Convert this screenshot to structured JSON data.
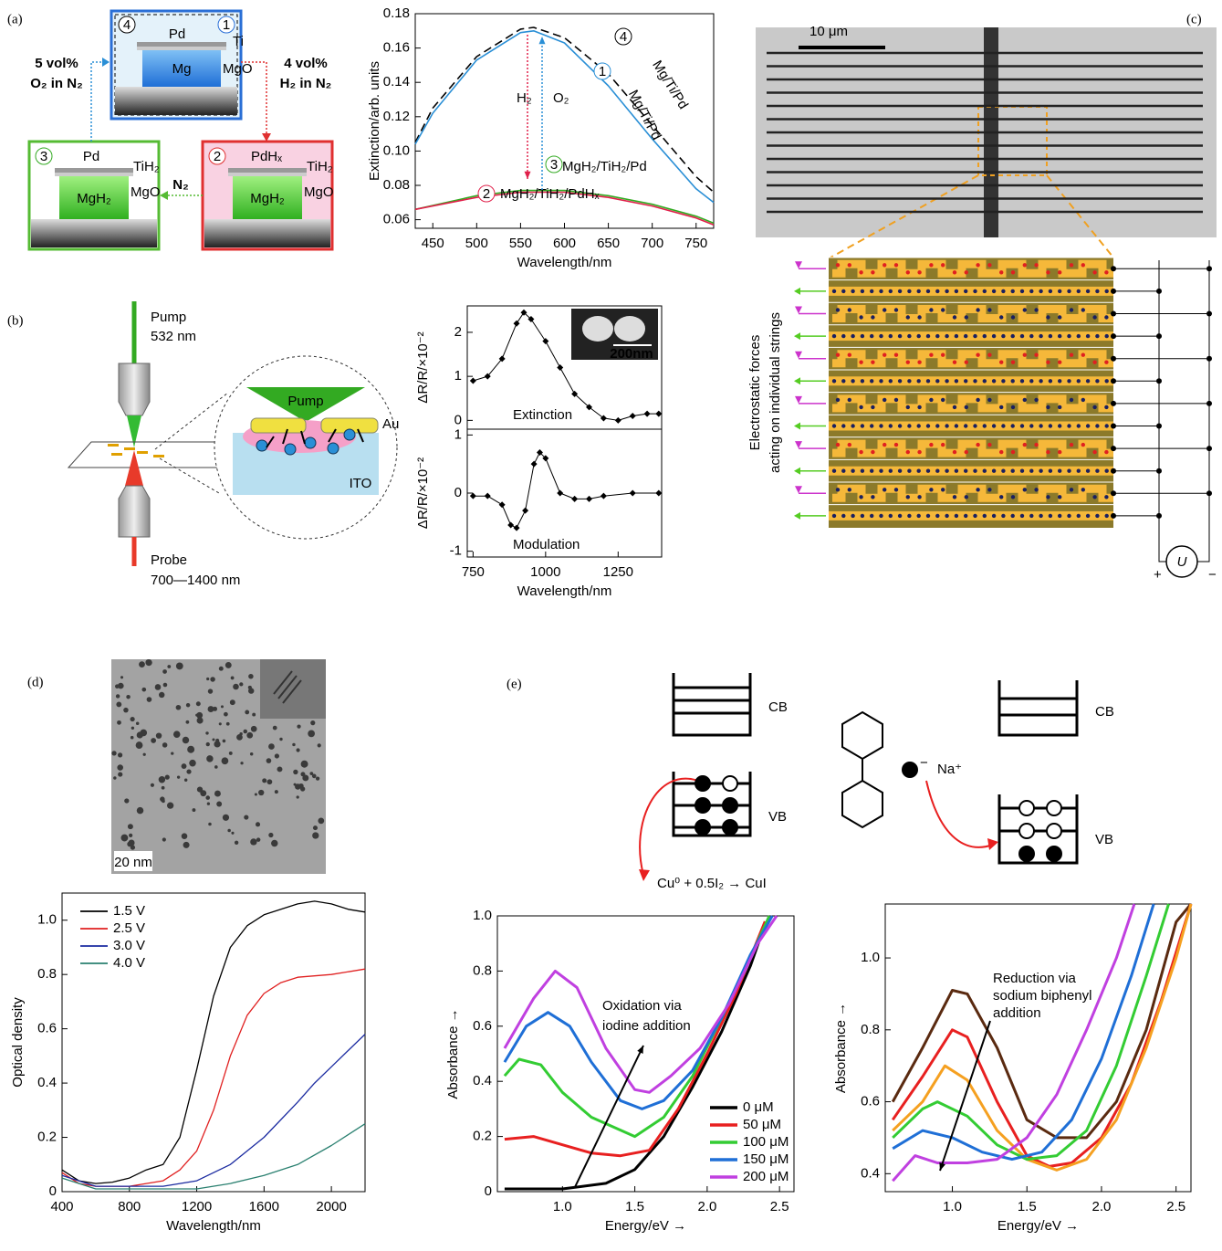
{
  "figure": {
    "a": [
      "(a)",
      "4",
      "1",
      "Pd",
      "Ti",
      "Mg",
      "MgO",
      "5 vol%",
      "O₂ in N₂",
      "4 vol%",
      "H₂ in N₂",
      "3",
      "Pd",
      "TiH₂",
      "MgH₂",
      "MgO",
      "2",
      "PdHₓ",
      "TiH₂",
      "MgH₂",
      "MgO",
      "N₂"
    ],
    "b": [
      "(b)",
      "Pump",
      "532 nm",
      "Pump",
      "Au",
      "ITO",
      "Probe",
      "700—1400 nm",
      "200nm"
    ],
    "c": [
      "(c)",
      "10 μm",
      "Electrostatic forces",
      "acting on individual strings",
      "+",
      "U",
      "−"
    ],
    "d": [
      "(d)",
      "20 nm"
    ],
    "e": [
      "(e)",
      "CB",
      "VB",
      "Cu⁰ + 0.5I₂ → CuI",
      "−",
      "Na⁺",
      "CB",
      "VB"
    ]
  },
  "chart_data": [
    {
      "type": "line",
      "xlabel": "Wavelength/nm",
      "ylabel": "Extinction/arb. units",
      "xlim": [
        430,
        770
      ],
      "ylim": [
        0.055,
        0.18
      ],
      "xticks": [
        450,
        500,
        550,
        600,
        650,
        700,
        750
      ],
      "yticks": [
        0.06,
        0.08,
        {
          "value": 0.1,
          "label": "0.10"
        },
        0.12,
        0.14,
        0.16,
        0.18
      ],
      "annotations": [
        "H₂",
        "O₂"
      ],
      "series": [
        {
          "name": "Mg/Ti/Pd",
          "tag": "4",
          "color": "#000000",
          "dashed": true,
          "x": [
            430,
            450,
            500,
            550,
            565,
            600,
            650,
            700,
            750,
            770
          ],
          "values": [
            0.105,
            0.125,
            0.155,
            0.171,
            0.172,
            0.166,
            0.145,
            0.115,
            0.085,
            0.076
          ]
        },
        {
          "name": "Mg/Ti/Pd",
          "tag": "1",
          "color": "#2a8fd6",
          "x": [
            430,
            450,
            500,
            550,
            565,
            600,
            650,
            700,
            750,
            770
          ],
          "values": [
            0.104,
            0.122,
            0.153,
            0.169,
            0.17,
            0.163,
            0.138,
            0.107,
            0.078,
            0.07
          ]
        },
        {
          "name": "MgH₂/TiH₂/Pd",
          "tag": "3",
          "color": "#33aa22",
          "x": [
            430,
            500,
            550,
            600,
            650,
            700,
            750,
            770
          ],
          "values": [
            0.066,
            0.074,
            0.077,
            0.077,
            0.074,
            0.069,
            0.062,
            0.058
          ]
        },
        {
          "name": "MgH₂/TiH₂/PdHₓ",
          "tag": "2",
          "color": "#e0204a",
          "x": [
            430,
            500,
            550,
            600,
            650,
            700,
            750,
            770
          ],
          "values": [
            0.066,
            0.073,
            0.076,
            0.076,
            0.073,
            0.068,
            0.061,
            0.057
          ]
        }
      ]
    },
    {
      "type": "line",
      "ylabel": "ΔR/R/×10⁻²",
      "xlim": [
        730,
        1400
      ],
      "ylim": [
        -0.2,
        2.6
      ],
      "yticks": [
        0,
        1,
        2
      ],
      "markers": true,
      "annotations": [
        "Extinction"
      ],
      "series": [
        {
          "color": "#000000",
          "x": [
            750,
            800,
            850,
            900,
            925,
            950,
            1000,
            1050,
            1100,
            1150,
            1200,
            1250,
            1300,
            1350,
            1390
          ],
          "values": [
            0.9,
            1.0,
            1.4,
            2.2,
            2.45,
            2.3,
            1.8,
            1.2,
            0.6,
            0.3,
            0.05,
            0.0,
            0.1,
            0.15,
            0.15
          ]
        }
      ]
    },
    {
      "type": "line",
      "xlabel": "Wavelength/nm",
      "ylabel": "ΔR/R/×10⁻²",
      "xlim": [
        730,
        1400
      ],
      "ylim": [
        -1.1,
        1.1
      ],
      "xticks": [
        750,
        1000,
        1250
      ],
      "yticks": [
        -1,
        0,
        1
      ],
      "markers": true,
      "annotations": [
        "Modulation"
      ],
      "series": [
        {
          "color": "#000000",
          "x": [
            750,
            800,
            850,
            880,
            900,
            930,
            960,
            980,
            1000,
            1050,
            1100,
            1150,
            1200,
            1300,
            1390
          ],
          "values": [
            -0.05,
            -0.05,
            -0.2,
            -0.55,
            -0.6,
            -0.3,
            0.5,
            0.7,
            0.6,
            0.0,
            -0.1,
            -0.1,
            -0.05,
            0.0,
            0.0
          ]
        }
      ]
    },
    {
      "type": "line",
      "xlabel": "Wavelength/nm",
      "ylabel": "Optical density",
      "xlim": [
        400,
        2200
      ],
      "ylim": [
        0,
        1.1
      ],
      "xticks": [
        400,
        800,
        1200,
        1600,
        2000
      ],
      "yticks": [
        0,
        0.2,
        0.4,
        0.6,
        0.8,
        {
          "value": 1,
          "label": "1.0"
        }
      ],
      "legend": "upper left",
      "series": [
        {
          "name": "1.5 V",
          "color": "#000000",
          "x": [
            400,
            500,
            600,
            700,
            800,
            900,
            1000,
            1100,
            1200,
            1300,
            1400,
            1500,
            1600,
            1700,
            1800,
            1900,
            2000,
            2100,
            2200
          ],
          "values": [
            0.08,
            0.04,
            0.03,
            0.035,
            0.05,
            0.08,
            0.1,
            0.2,
            0.45,
            0.72,
            0.9,
            0.98,
            1.02,
            1.04,
            1.06,
            1.07,
            1.06,
            1.04,
            1.03
          ]
        },
        {
          "name": "2.5 V",
          "color": "#e02020",
          "x": [
            400,
            500,
            600,
            800,
            1000,
            1100,
            1200,
            1300,
            1400,
            1500,
            1600,
            1700,
            1800,
            2000,
            2200
          ],
          "values": [
            0.07,
            0.03,
            0.02,
            0.02,
            0.04,
            0.08,
            0.15,
            0.3,
            0.5,
            0.65,
            0.73,
            0.77,
            0.79,
            0.8,
            0.82
          ]
        },
        {
          "name": "3.0 V",
          "color": "#1a2aa0",
          "x": [
            400,
            600,
            1000,
            1200,
            1400,
            1600,
            1800,
            1900,
            2000,
            2100,
            2200
          ],
          "values": [
            0.06,
            0.02,
            0.02,
            0.04,
            0.1,
            0.2,
            0.33,
            0.4,
            0.46,
            0.52,
            0.58
          ]
        },
        {
          "name": "4.0 V",
          "color": "#2a8070",
          "x": [
            400,
            600,
            1200,
            1400,
            1600,
            1800,
            2000,
            2100,
            2200
          ],
          "values": [
            0.05,
            0.01,
            0.01,
            0.03,
            0.06,
            0.1,
            0.17,
            0.21,
            0.25
          ]
        }
      ]
    },
    {
      "type": "line",
      "xlabel": "Energy/eV →",
      "ylabel": "Absorbance →",
      "xlim": [
        0.55,
        2.6
      ],
      "ylim": [
        0,
        1
      ],
      "xticks": [
        {
          "value": 1,
          "label": "1.0"
        },
        1.5,
        {
          "value": 2,
          "label": "2.0"
        },
        2.5
      ],
      "yticks": [
        0,
        0.2,
        0.4,
        0.6,
        0.8,
        {
          "value": 1,
          "label": "1.0"
        }
      ],
      "legend": "lower right",
      "annotations": [
        "Oxidation via",
        "iodine addition"
      ],
      "series": [
        {
          "name": "0 μM",
          "color": "#000000",
          "x": [
            0.6,
            1.0,
            1.3,
            1.5,
            1.7,
            1.9,
            2.1,
            2.3,
            2.4
          ],
          "values": [
            0.01,
            0.01,
            0.03,
            0.08,
            0.2,
            0.38,
            0.58,
            0.82,
            0.97
          ]
        },
        {
          "name": "50 μM",
          "color": "#e82020",
          "x": [
            0.6,
            0.8,
            1.0,
            1.2,
            1.4,
            1.6,
            1.8,
            2.0,
            2.2,
            2.4
          ],
          "values": [
            0.19,
            0.2,
            0.17,
            0.14,
            0.13,
            0.15,
            0.3,
            0.5,
            0.72,
            0.98
          ]
        },
        {
          "name": "100 μM",
          "color": "#33cc33",
          "x": [
            0.6,
            0.7,
            0.85,
            1.0,
            1.2,
            1.5,
            1.7,
            1.9,
            2.1,
            2.3,
            2.43
          ],
          "values": [
            0.42,
            0.48,
            0.46,
            0.36,
            0.27,
            0.2,
            0.27,
            0.42,
            0.63,
            0.85,
            1.0
          ]
        },
        {
          "name": "150 μM",
          "color": "#1f6fd6",
          "x": [
            0.6,
            0.75,
            0.9,
            1.05,
            1.2,
            1.4,
            1.55,
            1.7,
            1.9,
            2.1,
            2.3,
            2.45
          ],
          "values": [
            0.47,
            0.6,
            0.65,
            0.6,
            0.47,
            0.33,
            0.3,
            0.33,
            0.44,
            0.63,
            0.86,
            1.0
          ]
        },
        {
          "name": "200 μM",
          "color": "#c040e0",
          "x": [
            0.6,
            0.8,
            0.95,
            1.1,
            1.3,
            1.5,
            1.6,
            1.75,
            1.95,
            2.15,
            2.35,
            2.48
          ],
          "values": [
            0.52,
            0.7,
            0.8,
            0.74,
            0.52,
            0.37,
            0.36,
            0.42,
            0.52,
            0.68,
            0.9,
            1.0
          ]
        }
      ]
    },
    {
      "type": "line",
      "xlabel": "Energy/eV →",
      "ylabel": "Absorbance →",
      "xlim": [
        0.55,
        2.6
      ],
      "ylim": [
        0.35,
        1.15
      ],
      "xticks": [
        {
          "value": 1,
          "label": "1.0"
        },
        1.5,
        {
          "value": 2,
          "label": "2.0"
        },
        2.5
      ],
      "yticks": [
        0.4,
        0.6,
        0.8,
        {
          "value": 1,
          "label": "1.0"
        }
      ],
      "annotations": [
        "Reduction via",
        "sodium biphenyl",
        "addition"
      ],
      "series": [
        {
          "color": "#5a2a10",
          "x": [
            0.6,
            0.8,
            1.0,
            1.1,
            1.3,
            1.5,
            1.7,
            1.9,
            2.1,
            2.3,
            2.5,
            2.6
          ],
          "values": [
            0.6,
            0.75,
            0.91,
            0.9,
            0.75,
            0.55,
            0.5,
            0.5,
            0.6,
            0.8,
            1.1,
            1.15
          ]
        },
        {
          "color": "#e82020",
          "x": [
            0.6,
            0.8,
            1.0,
            1.1,
            1.3,
            1.5,
            1.65,
            1.8,
            2.0,
            2.2,
            2.4,
            2.6
          ],
          "values": [
            0.55,
            0.67,
            0.8,
            0.78,
            0.6,
            0.45,
            0.42,
            0.43,
            0.5,
            0.65,
            0.88,
            1.15
          ]
        },
        {
          "color": "#f5a020",
          "x": [
            0.6,
            0.8,
            0.95,
            1.1,
            1.3,
            1.5,
            1.7,
            1.9,
            2.1,
            2.3,
            2.5,
            2.6
          ],
          "values": [
            0.52,
            0.6,
            0.7,
            0.66,
            0.52,
            0.44,
            0.41,
            0.44,
            0.55,
            0.75,
            1.0,
            1.15
          ]
        },
        {
          "color": "#33cc33",
          "x": [
            0.6,
            0.8,
            0.9,
            1.1,
            1.3,
            1.5,
            1.7,
            1.9,
            2.1,
            2.3,
            2.45
          ],
          "values": [
            0.5,
            0.58,
            0.6,
            0.56,
            0.48,
            0.44,
            0.45,
            0.52,
            0.7,
            0.95,
            1.15
          ]
        },
        {
          "color": "#1f6fd6",
          "x": [
            0.6,
            0.8,
            1.0,
            1.2,
            1.4,
            1.6,
            1.8,
            2.0,
            2.2,
            2.35
          ],
          "values": [
            0.47,
            0.52,
            0.5,
            0.46,
            0.44,
            0.46,
            0.55,
            0.72,
            0.95,
            1.15
          ]
        },
        {
          "color": "#c040e0",
          "x": [
            0.6,
            0.75,
            0.9,
            1.1,
            1.3,
            1.5,
            1.7,
            1.9,
            2.1,
            2.22
          ],
          "values": [
            0.38,
            0.45,
            0.43,
            0.43,
            0.44,
            0.5,
            0.62,
            0.8,
            1.0,
            1.15
          ]
        }
      ]
    }
  ]
}
